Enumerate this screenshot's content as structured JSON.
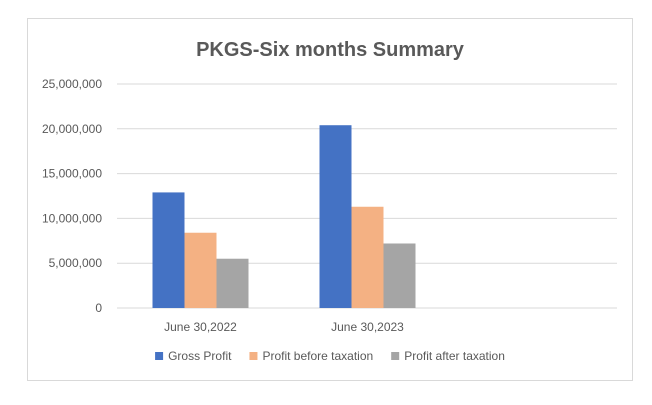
{
  "chart_data": {
    "type": "bar",
    "title": "PKGS-Six months Summary",
    "categories": [
      "June 30,2022",
      "June 30,2023"
    ],
    "series": [
      {
        "name": "Gross Profit",
        "color": "#4472c4",
        "values": [
          12900000,
          20400000
        ]
      },
      {
        "name": "Profit before taxation",
        "color": "#f4b183",
        "values": [
          8400000,
          11300000
        ]
      },
      {
        "name": "Profit after taxation",
        "color": "#a5a5a5",
        "values": [
          5500000,
          7200000
        ]
      }
    ],
    "y_ticks": [
      "0",
      "5,000,000",
      "10,000,000",
      "15,000,000",
      "20,000,000",
      "25,000,000"
    ],
    "ylim": [
      0,
      25000000
    ],
    "xlabel": "",
    "ylabel": "",
    "grid": true,
    "legend_position": "bottom"
  }
}
